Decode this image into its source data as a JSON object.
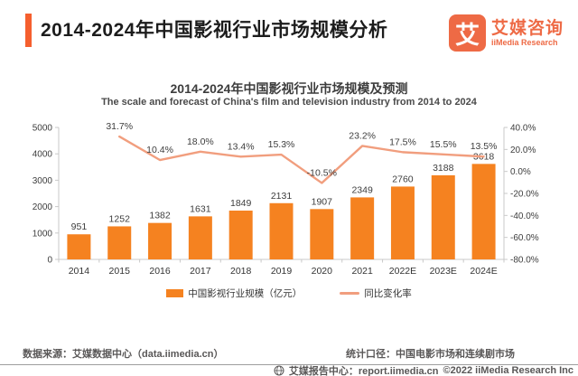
{
  "colors": {
    "accent": "#F55F2E",
    "logo_orange": "#EE6A45",
    "bar_orange": "#F58220",
    "line_salmon": "#F19E7E",
    "text_dark": "#3d3d3d"
  },
  "header": {
    "title": "2014-2024年中国影视行业市场规模分析",
    "logo": {
      "mark": "艾",
      "name_cn": "艾媒咨询",
      "name_en": "iiMedia Research"
    }
  },
  "chart_data": {
    "type": "bar+line",
    "title": "2014-2024年中国影视行业市场规模及预测",
    "subtitle": "The scale and forecast of China's film and television industry from 2014 to 2024",
    "categories": [
      "2014",
      "2015",
      "2016",
      "2017",
      "2018",
      "2019",
      "2020",
      "2021",
      "2022E",
      "2023E",
      "2024E"
    ],
    "series": [
      {
        "name": "中国影视行业规模（亿元）",
        "type": "bar",
        "axis": "left",
        "color": "#F58220",
        "values": [
          951,
          1252,
          1382,
          1631,
          1849,
          2131,
          1907,
          2349,
          2760,
          3188,
          3618
        ]
      },
      {
        "name": "同比变化率",
        "type": "line",
        "axis": "right",
        "color": "#F19E7E",
        "values": [
          null,
          31.7,
          10.4,
          18.0,
          13.4,
          15.3,
          -10.5,
          23.2,
          17.5,
          15.5,
          13.5
        ],
        "labels": [
          null,
          "31.7%",
          "10.4%",
          "18.0%",
          "13.4%",
          "15.3%",
          "-10.5%",
          "23.2%",
          "17.5%",
          "15.5%",
          "13.5%"
        ]
      }
    ],
    "left_axis": {
      "min": 0,
      "max": 5000,
      "ticks": [
        "0",
        "1000",
        "2000",
        "3000",
        "4000",
        "5000"
      ]
    },
    "right_axis": {
      "min": -80,
      "max": 40,
      "ticks": [
        "40.0%",
        "20.0%",
        "0.0%",
        "-20.0%",
        "-40.0%",
        "-60.0%",
        "-80.0%"
      ]
    },
    "legend_position": "bottom",
    "grid": false
  },
  "info_row": {
    "source": "数据来源：艾媒数据中心（data.iimedia.cn）",
    "scope": "统计口径：中国电影市场和连续剧市场"
  },
  "footer": {
    "site": "艾媒报告中心：report.iimedia.cn",
    "copyright": "©2022  iiMedia Research Inc"
  }
}
